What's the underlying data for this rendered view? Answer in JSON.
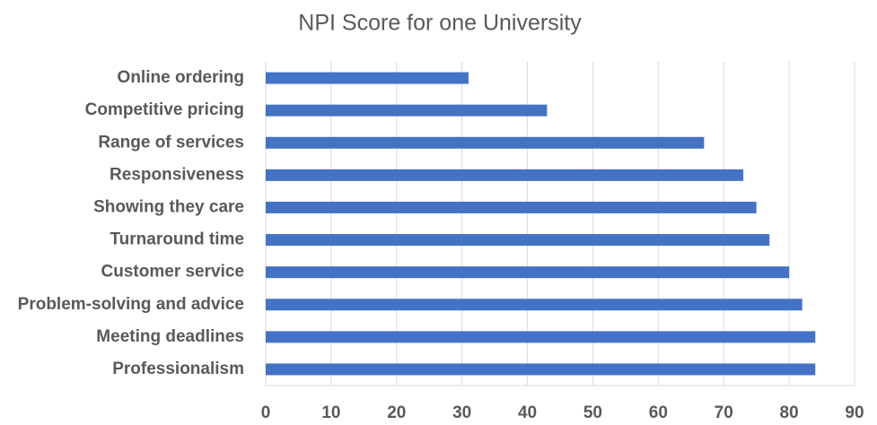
{
  "chart_data": {
    "type": "bar",
    "orientation": "horizontal",
    "title": "NPI Score for one University",
    "categories": [
      "Online ordering",
      "Competitive pricing",
      "Range of services",
      "Responsiveness",
      "Showing they care",
      "Turnaround time",
      "Customer service",
      "Problem-solving and advice",
      "Meeting deadlines",
      "Professionalism"
    ],
    "values": [
      31,
      43,
      67,
      73,
      75,
      77,
      80,
      82,
      84,
      84
    ],
    "color": "#4472c4",
    "xlim": [
      0,
      90
    ],
    "xticks": [
      0,
      10,
      20,
      30,
      40,
      50,
      60,
      70,
      80,
      90
    ],
    "grid": true
  }
}
